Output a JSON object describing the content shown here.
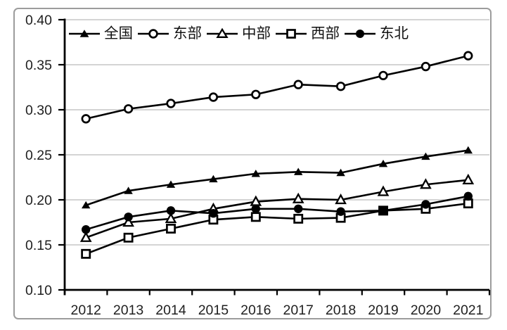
{
  "chart_data": {
    "type": "line",
    "title": "",
    "xlabel": "",
    "ylabel": "",
    "categories": [
      "2012",
      "2013",
      "2014",
      "2015",
      "2016",
      "2017",
      "2018",
      "2019",
      "2020",
      "2021"
    ],
    "series": [
      {
        "id": "national",
        "name": "全国",
        "marker": "triangle-filled",
        "values": [
          0.194,
          0.21,
          0.217,
          0.223,
          0.229,
          0.231,
          0.23,
          0.24,
          0.248,
          0.255
        ]
      },
      {
        "id": "eastern",
        "name": "东部",
        "marker": "circle-open",
        "values": [
          0.29,
          0.301,
          0.307,
          0.314,
          0.317,
          0.328,
          0.326,
          0.338,
          0.348,
          0.36
        ]
      },
      {
        "id": "central",
        "name": "中部",
        "marker": "triangle-open",
        "values": [
          0.158,
          0.175,
          0.179,
          0.19,
          0.198,
          0.201,
          0.2,
          0.209,
          0.217,
          0.222
        ]
      },
      {
        "id": "western",
        "name": "西部",
        "marker": "square-open",
        "values": [
          0.14,
          0.158,
          0.168,
          0.178,
          0.181,
          0.179,
          0.18,
          0.188,
          0.19,
          0.196
        ]
      },
      {
        "id": "northeast",
        "name": "东北",
        "marker": "circle-filled",
        "values": [
          0.167,
          0.181,
          0.188,
          0.185,
          0.19,
          0.19,
          0.187,
          0.188,
          0.195,
          0.204
        ]
      }
    ],
    "ylim": [
      0.1,
      0.4
    ],
    "ytick_step": 0.05,
    "ytick_labels": [
      "0.10",
      "0.15",
      "0.20",
      "0.25",
      "0.30",
      "0.35",
      "0.40"
    ],
    "grid": true,
    "legend_position": "top-inside",
    "colors": {
      "line": "#000000",
      "grid": "#c5c5c5",
      "axis": "#000000",
      "text": "#1f1f1f",
      "background": "#ffffff",
      "frame_border": "#9c9c9c"
    }
  }
}
